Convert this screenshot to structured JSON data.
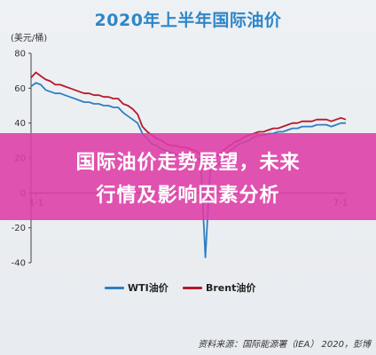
{
  "image_title": "2020年上半年国际油价",
  "unit_label": "(美元/桶)",
  "banner": {
    "line1": "国际油价走势展望，未来",
    "line2": "行情及影响因素分析"
  },
  "source_text": "资料来源：国际能源署（IEA） 2020，彭博",
  "colors": {
    "wti": "#2f7fc1",
    "brent": "#b7192b",
    "banner": "#de3ca5",
    "title": "#2e86c8"
  },
  "chart_data": {
    "type": "line",
    "title": "2020年上半年国际油价",
    "xlabel": "",
    "ylabel": "(美元/桶)",
    "ylim": [
      -40,
      80
    ],
    "yticks": [
      -40,
      -20,
      0,
      20,
      40,
      60,
      80
    ],
    "x_ticks": [
      "1-1",
      "7-1"
    ],
    "grid": false,
    "legend_position": "bottom",
    "x": [
      0,
      2,
      4,
      6,
      8,
      10,
      12,
      14,
      16,
      18,
      20,
      22,
      24,
      26,
      28,
      30,
      32,
      34,
      36,
      38,
      40,
      42,
      44,
      46,
      48,
      50,
      52,
      54,
      56,
      58,
      60,
      62,
      64,
      66,
      68,
      70,
      72,
      74,
      76,
      78,
      80,
      82,
      84,
      86,
      88,
      90,
      92,
      94,
      96,
      98,
      100,
      102,
      104,
      106,
      108,
      110,
      112,
      114,
      116,
      118,
      120,
      122,
      124,
      126,
      128,
      130
    ],
    "series": [
      {
        "name": "WTI油价",
        "values": [
          61,
          63,
          62,
          59,
          58,
          57,
          57,
          56,
          55,
          54,
          53,
          52,
          52,
          51,
          51,
          50,
          50,
          49,
          49,
          46,
          44,
          42,
          40,
          34,
          31,
          28,
          27,
          25,
          24,
          23,
          22,
          21,
          21,
          20,
          20,
          19,
          -37,
          14,
          15,
          17,
          20,
          24,
          26,
          28,
          29,
          30,
          32,
          33,
          33,
          34,
          34,
          35,
          35,
          36,
          37,
          37,
          38,
          38,
          38,
          39,
          39,
          39,
          38,
          39,
          40,
          40
        ]
      },
      {
        "name": "Brent油价",
        "values": [
          66,
          69,
          67,
          65,
          64,
          62,
          62,
          61,
          60,
          59,
          58,
          57,
          57,
          56,
          56,
          55,
          55,
          54,
          54,
          51,
          50,
          48,
          45,
          38,
          35,
          33,
          31,
          30,
          28,
          27,
          27,
          26,
          26,
          25,
          24,
          22,
          21,
          20,
          21,
          22,
          25,
          27,
          29,
          30,
          32,
          33,
          34,
          35,
          35,
          36,
          37,
          37,
          38,
          39,
          40,
          40,
          41,
          41,
          41,
          42,
          42,
          42,
          41,
          42,
          43,
          42
        ]
      }
    ]
  }
}
